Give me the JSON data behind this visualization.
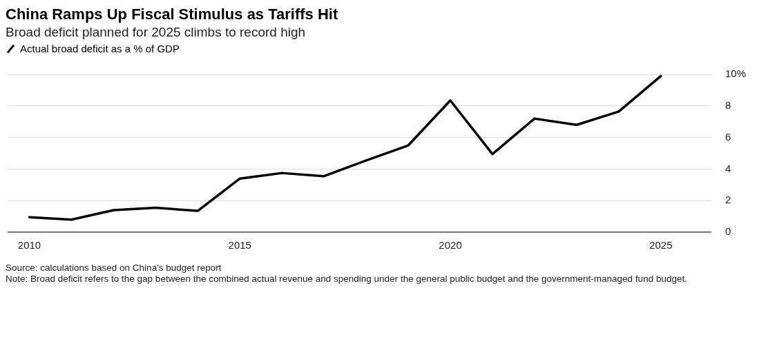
{
  "chart_data": {
    "type": "line",
    "title": "China Ramps Up Fiscal Stimulus as Tariffs Hit",
    "subtitle": "Broad deficit planned for 2025 climbs to record high",
    "x": [
      2010,
      2011,
      2012,
      2013,
      2014,
      2015,
      2016,
      2017,
      2018,
      2019,
      2020,
      2021,
      2022,
      2023,
      2024,
      2025
    ],
    "series": [
      {
        "name": "Actual broad deficit as a % of GDP",
        "color": "#000000",
        "values": [
          0.95,
          0.8,
          1.4,
          1.55,
          1.35,
          3.4,
          3.75,
          3.55,
          4.55,
          5.5,
          8.35,
          4.95,
          7.2,
          6.8,
          7.65,
          9.9
        ]
      }
    ],
    "xlim": [
      2009.5,
      2026.2
    ],
    "xticks": [
      2010,
      2015,
      2020,
      2025
    ],
    "ylim": [
      0,
      10
    ],
    "yticks": [
      0,
      2,
      4,
      6,
      8,
      {
        "value": 10,
        "label": "10%"
      }
    ],
    "grid": "y",
    "legend": "top left",
    "marker": "none",
    "line_style": "solid",
    "annotations": [
      "Source: calculations based on China's budget report",
      "Note: Broad deficit refers to the gap between the combined actual revenue and spending under the general public budget and the government-managed fund budget."
    ]
  }
}
